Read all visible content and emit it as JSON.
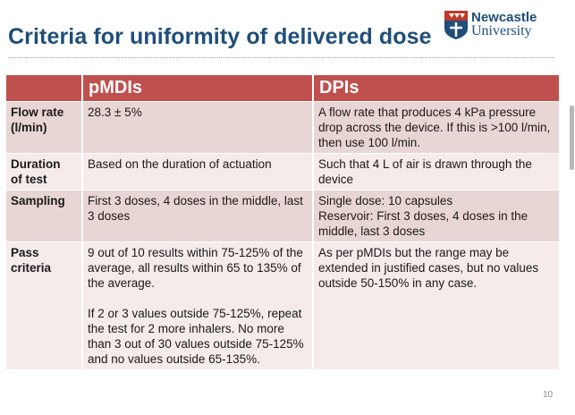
{
  "slide": {
    "title": "Criteria for uniformity of delivered dose",
    "page_number": "10",
    "logo": {
      "name": "Newcastle",
      "sub": "University"
    }
  },
  "table": {
    "headers": [
      "",
      "pMDIs",
      "DPIs"
    ],
    "rows": [
      {
        "label": "Flow rate\n(l/min)",
        "pmdi": "28.3 ± 5%",
        "dpi": "A flow rate that produces 4 kPa pressure drop across the device. If this is >100 l/min, then use 100 l/min."
      },
      {
        "label": "Duration\nof test",
        "pmdi": "Based on the duration of actuation",
        "dpi": "Such that 4 L of air is drawn through the device"
      },
      {
        "label": "Sampling",
        "pmdi": "First 3 doses, 4 doses in the middle, last 3 doses",
        "dpi": "Single dose: 10 capsules\nReservoir: First 3 doses, 4 doses in the middle, last 3 doses"
      },
      {
        "label": "Pass\ncriteria",
        "pmdi": "9 out of 10 results within 75-125% of the average, all results within 65 to 135% of the average.\n\nIf 2 or 3 values outside 75-125%, repeat the test for 2 more inhalers. No more than 3 out of 30 values outside 75-125% and no values outside 65-135%.",
        "dpi": "As per pMDIs but the range may be extended in justified cases, but no values outside 50-150% in any case."
      }
    ]
  },
  "colors": {
    "title": "#1f4e79",
    "header_bg": "#c0504d",
    "row_odd": "#e8d6d5",
    "row_even": "#f4ebea"
  }
}
